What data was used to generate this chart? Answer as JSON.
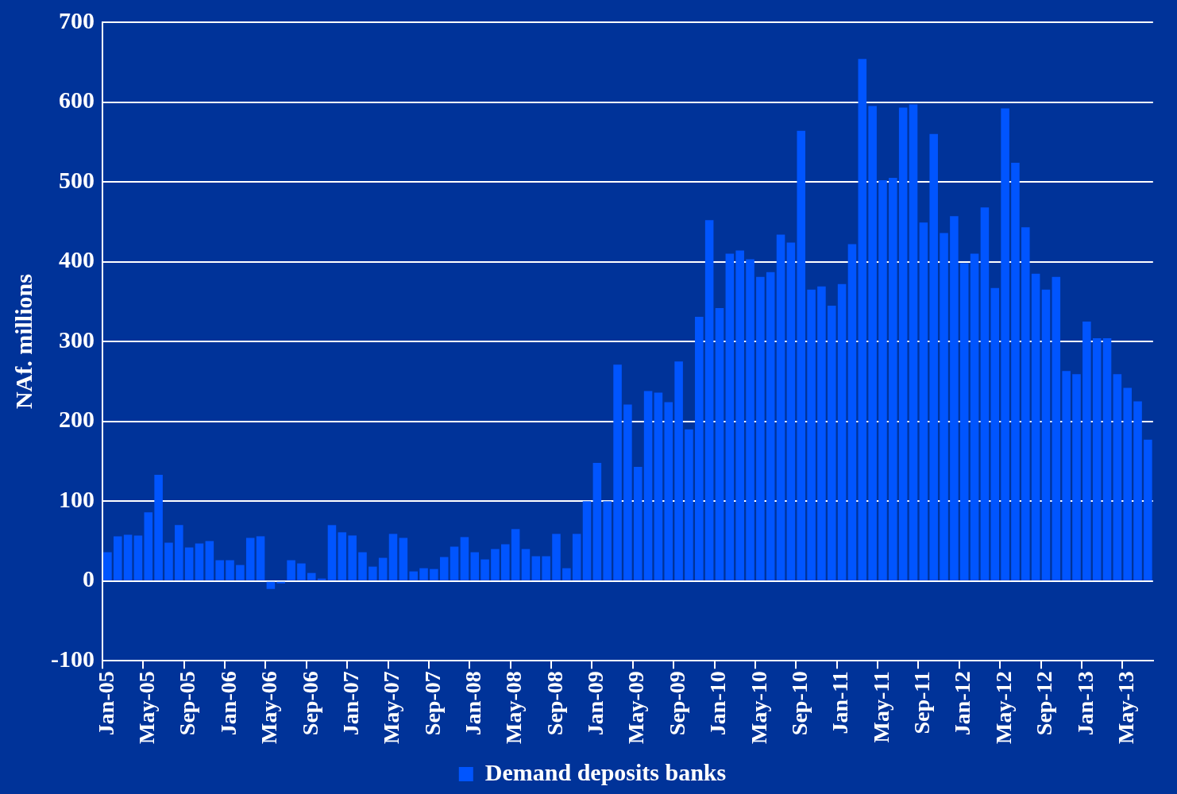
{
  "chart_data": {
    "type": "bar",
    "ylabel": "NAf. millions",
    "categories": [
      "Jan-05",
      null,
      null,
      null,
      "May-05",
      null,
      null,
      null,
      "Sep-05",
      null,
      null,
      null,
      "Jan-06",
      null,
      null,
      null,
      "May-06",
      null,
      null,
      null,
      "Sep-06",
      null,
      null,
      null,
      "Jan-07",
      null,
      null,
      null,
      "May-07",
      null,
      null,
      null,
      "Sep-07",
      null,
      null,
      null,
      "Jan-08",
      null,
      null,
      null,
      "May-08",
      null,
      null,
      null,
      "Sep-08",
      null,
      null,
      null,
      "Jan-09",
      null,
      null,
      null,
      "May-09",
      null,
      null,
      null,
      "Sep-09",
      null,
      null,
      null,
      "Jan-10",
      null,
      null,
      null,
      "May-10",
      null,
      null,
      null,
      "Sep-10",
      null,
      null,
      null,
      "Jan-11",
      null,
      null,
      null,
      "May-11",
      null,
      null,
      null,
      "Sep-11",
      null,
      null,
      null,
      "Jan-12",
      null,
      null,
      null,
      "May-12",
      null,
      null,
      null,
      "Sep-12",
      null,
      null,
      null,
      "Jan-13",
      null,
      null,
      null,
      "May-13",
      null,
      null
    ],
    "series": [
      {
        "name": "Demand deposits banks",
        "color": "#0055ff",
        "values": [
          36,
          56,
          58,
          57,
          86,
          133,
          48,
          70,
          42,
          47,
          50,
          26,
          26,
          20,
          54,
          56,
          -10,
          -3,
          26,
          22,
          10,
          3,
          70,
          61,
          57,
          36,
          18,
          29,
          59,
          54,
          12,
          16,
          15,
          30,
          43,
          55,
          36,
          27,
          40,
          46,
          65,
          40,
          31,
          31,
          59,
          16,
          59,
          100,
          148,
          100,
          271,
          221,
          143,
          238,
          236,
          224,
          275,
          190,
          331,
          452,
          342,
          410,
          414,
          403,
          381,
          387,
          434,
          424,
          564,
          365,
          369,
          345,
          372,
          422,
          654,
          595,
          502,
          505,
          593,
          597,
          449,
          560,
          436,
          457,
          398,
          410,
          468,
          367,
          592,
          524,
          443,
          385,
          365,
          381,
          263,
          259,
          325,
          304,
          304,
          259,
          242,
          225,
          177
        ]
      }
    ],
    "ylim": [
      -100,
      700
    ],
    "yticks": [
      -100,
      0,
      100,
      200,
      300,
      400,
      500,
      600,
      700
    ],
    "grid": "y",
    "legend": "bottom"
  }
}
